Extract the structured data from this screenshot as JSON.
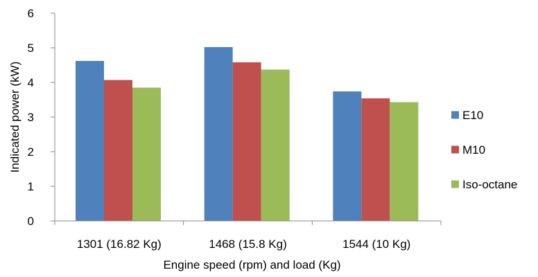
{
  "chart_data": {
    "type": "bar",
    "categories": [
      "1301 (16.82 Kg)",
      "1468 (15.8 Kg)",
      "1544 (10 Kg)"
    ],
    "series": [
      {
        "name": "E10",
        "color": "#4F81BD",
        "values": [
          4.62,
          5.02,
          3.74
        ]
      },
      {
        "name": "M10",
        "color": "#C0504D",
        "values": [
          4.07,
          4.58,
          3.54
        ]
      },
      {
        "name": "Iso-octane",
        "color": "#9BBB59",
        "values": [
          3.85,
          4.37,
          3.43
        ]
      }
    ],
    "xlabel": "Engine speed (rpm) and load (Kg)",
    "ylabel": "Indicated power (kW)",
    "ylim": [
      0,
      6
    ],
    "yticks": [
      0,
      1,
      2,
      3,
      4,
      5,
      6
    ],
    "grid": false,
    "legend_position": "right"
  }
}
